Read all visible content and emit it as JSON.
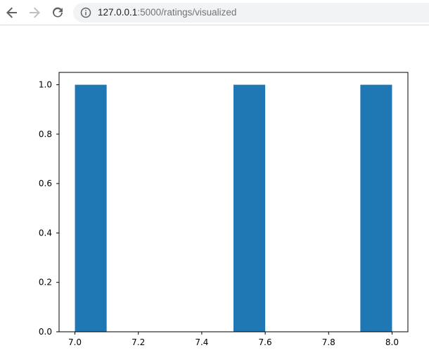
{
  "browser": {
    "url_host": "127.0.0.1",
    "url_rest": ":5000/ratings/visualized",
    "icons": {
      "back": "arrow-left-icon",
      "forward": "arrow-right-icon",
      "reload": "reload-icon",
      "site_info": "info-icon"
    },
    "colors": {
      "omnibox": "#f1f3f4",
      "nav_active": "#5f6368",
      "nav_disabled": "#bdc1c6"
    }
  },
  "chart_data": {
    "type": "bar",
    "title": "",
    "xlabel": "",
    "ylabel": "",
    "bar_color": "#1f77b4",
    "xlim": [
      6.95,
      8.05
    ],
    "ylim": [
      0.0,
      1.05
    ],
    "x_ticks": [
      "7.0",
      "7.2",
      "7.4",
      "7.6",
      "7.8",
      "8.0"
    ],
    "y_ticks": [
      "0.0",
      "0.2",
      "0.4",
      "0.6",
      "0.8",
      "1.0"
    ],
    "bins": [
      {
        "start": 7.0,
        "end": 7.1,
        "value": 1
      },
      {
        "start": 7.1,
        "end": 7.2,
        "value": 0
      },
      {
        "start": 7.2,
        "end": 7.3,
        "value": 0
      },
      {
        "start": 7.3,
        "end": 7.4,
        "value": 0
      },
      {
        "start": 7.4,
        "end": 7.5,
        "value": 0
      },
      {
        "start": 7.5,
        "end": 7.6,
        "value": 1
      },
      {
        "start": 7.6,
        "end": 7.7,
        "value": 0
      },
      {
        "start": 7.7,
        "end": 7.8,
        "value": 0
      },
      {
        "start": 7.8,
        "end": 7.9,
        "value": 0
      },
      {
        "start": 7.9,
        "end": 8.0,
        "value": 1
      }
    ],
    "grid": false,
    "legend": "none"
  }
}
